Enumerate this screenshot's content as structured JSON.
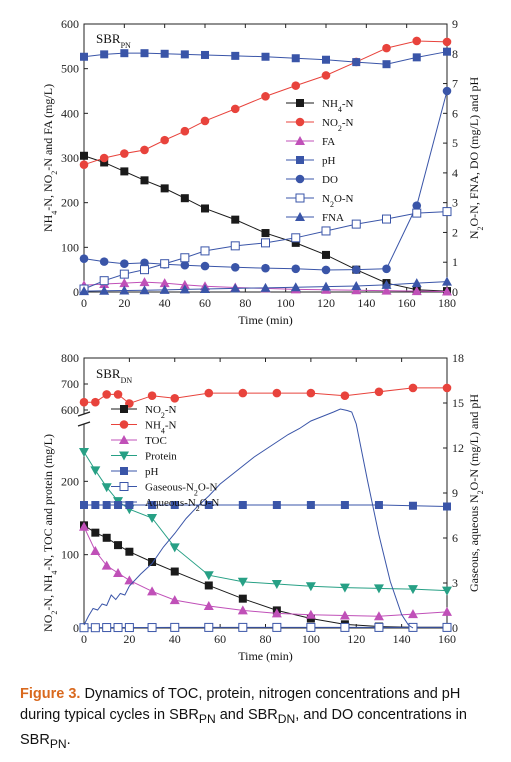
{
  "chart_data": [
    {
      "type": "line",
      "title": "SBR",
      "title_sub": "PN",
      "xlabel": "Time (min)",
      "ylabel": "NH4-N, NO2-N and FA (mg/L)",
      "ylabel_parts": [
        "NH",
        "4",
        "-N, NO",
        "2",
        "-N and FA (mg/L)"
      ],
      "ylabel_right": "N2O-N, FNA, DO (mg/L) and pH",
      "ylabel_right_parts": [
        "N",
        "2",
        "O-N, FNA, DO  (mg/L) and pH"
      ],
      "xlim": [
        0,
        180
      ],
      "ylim": [
        0,
        600
      ],
      "ylim_right": [
        0,
        9
      ],
      "xticks": [
        0,
        20,
        40,
        60,
        80,
        100,
        120,
        140,
        160,
        180
      ],
      "yticks": [
        0,
        100,
        200,
        300,
        400,
        500,
        600
      ],
      "yticks_right": [
        0,
        1,
        2,
        3,
        4,
        5,
        6,
        7,
        8,
        9
      ],
      "series": [
        {
          "name": "NH4-N",
          "label_main": "NH",
          "label_sub": "4",
          "label_tail": "-N",
          "marker": "square-filled",
          "color": "#1a1a1a",
          "axis": "left",
          "x": [
            0,
            10,
            20,
            30,
            40,
            50,
            60,
            75,
            90,
            105,
            120,
            135,
            150,
            165,
            180
          ],
          "y": [
            305,
            290,
            270,
            250,
            232,
            210,
            187,
            162,
            132,
            110,
            83,
            50,
            20,
            5,
            2
          ]
        },
        {
          "name": "NO2-N",
          "label_main": "NO",
          "label_sub": "2",
          "label_tail": "-N",
          "marker": "circle-filled",
          "color": "#e8433c",
          "axis": "left",
          "x": [
            0,
            10,
            20,
            30,
            40,
            50,
            60,
            75,
            90,
            105,
            120,
            135,
            150,
            165,
            180
          ],
          "y": [
            285,
            300,
            310,
            318,
            340,
            360,
            383,
            410,
            438,
            462,
            485,
            515,
            546,
            562,
            560
          ]
        },
        {
          "name": "FA",
          "label_main": "FA",
          "label_sub": "",
          "label_tail": "",
          "marker": "triangle-filled",
          "color": "#c050b8",
          "axis": "left",
          "x": [
            0,
            10,
            20,
            30,
            40,
            50,
            60,
            75,
            90,
            105,
            120,
            135,
            150,
            165,
            180
          ],
          "y": [
            15,
            18,
            20,
            22,
            20,
            16,
            13,
            10,
            8,
            6,
            5,
            4,
            3,
            2,
            1
          ]
        },
        {
          "name": "pH",
          "label_main": "pH",
          "label_sub": "",
          "label_tail": "",
          "marker": "square-filled",
          "color": "#3a55a8",
          "axis": "right",
          "x": [
            0,
            10,
            20,
            30,
            40,
            50,
            60,
            75,
            90,
            105,
            120,
            135,
            150,
            165,
            180
          ],
          "y": [
            7.9,
            7.98,
            8.02,
            8.02,
            8.0,
            7.98,
            7.96,
            7.93,
            7.9,
            7.85,
            7.8,
            7.72,
            7.65,
            7.88,
            8.07
          ]
        },
        {
          "name": "DO",
          "label_main": "DO",
          "label_sub": "",
          "label_tail": "",
          "marker": "circle-filled",
          "color": "#3a55a8",
          "axis": "right",
          "x": [
            0,
            10,
            20,
            30,
            40,
            50,
            60,
            75,
            90,
            105,
            120,
            135,
            150,
            165,
            180
          ],
          "y": [
            1.12,
            1.02,
            0.95,
            0.98,
            0.93,
            0.9,
            0.87,
            0.83,
            0.8,
            0.78,
            0.74,
            0.75,
            0.78,
            2.9,
            6.75
          ]
        },
        {
          "name": "N2O-N",
          "label_main": "N",
          "label_sub": "2",
          "label_tail": "O-N",
          "marker": "square-open",
          "color": "#3a55a8",
          "axis": "right",
          "x": [
            0,
            10,
            20,
            30,
            40,
            50,
            60,
            75,
            90,
            105,
            120,
            135,
            150,
            165,
            180
          ],
          "y": [
            0.1,
            0.38,
            0.6,
            0.75,
            0.95,
            1.15,
            1.38,
            1.55,
            1.65,
            1.82,
            2.05,
            2.28,
            2.45,
            2.65,
            2.7
          ]
        },
        {
          "name": "FNA",
          "label_main": "FNA",
          "label_sub": "",
          "label_tail": "",
          "marker": "triangle-filled",
          "color": "#3a55a8",
          "axis": "right",
          "x": [
            0,
            10,
            20,
            30,
            40,
            50,
            60,
            75,
            90,
            105,
            120,
            135,
            150,
            165,
            180
          ],
          "y": [
            0.03,
            0.04,
            0.05,
            0.06,
            0.07,
            0.09,
            0.1,
            0.12,
            0.14,
            0.16,
            0.18,
            0.2,
            0.24,
            0.3,
            0.35
          ]
        }
      ]
    },
    {
      "type": "line",
      "title": "SBR",
      "title_sub": "DN",
      "xlabel": "Time (min)",
      "ylabel": "NO2-N, NH4-N, TOC and protein (mg/L)",
      "ylabel_parts": [
        "NO",
        "2",
        "-N, NH",
        "4",
        "-N, TOC and protein (mg/L)"
      ],
      "ylabel_right": "Gaseous, aqueous N2O-N (mg/L) and pH",
      "ylabel_right_parts": [
        "Gaseous, aqueous N",
        "2",
        "O-N (mg/L) and pH"
      ],
      "xlim": [
        0,
        160
      ],
      "ylim": [
        0,
        270
      ],
      "ylim_upper": [
        600,
        800
      ],
      "ylim_right": [
        0,
        18
      ],
      "xticks": [
        0,
        20,
        40,
        60,
        80,
        100,
        120,
        140,
        160
      ],
      "yticks": [
        0,
        100,
        200
      ],
      "yticks_upper": [
        600,
        700,
        800
      ],
      "yticks_right": [
        0,
        3,
        6,
        9,
        12,
        15,
        18
      ],
      "series": [
        {
          "name": "NO2-N",
          "label_main": "NO",
          "label_sub": "2",
          "label_tail": "-N",
          "marker": "square-filled",
          "color": "#1a1a1a",
          "axis": "left",
          "x": [
            0,
            5,
            10,
            15,
            20,
            30,
            40,
            55,
            70,
            85,
            100,
            115,
            130,
            145,
            160
          ],
          "y": [
            140,
            130,
            123,
            113,
            104,
            90,
            77,
            58,
            40,
            24,
            13,
            5,
            2,
            1,
            1
          ]
        },
        {
          "name": "NH4-N",
          "label_main": "NH",
          "label_sub": "4",
          "label_tail": "-N",
          "marker": "circle-filled",
          "color": "#e8433c",
          "axis": "upper",
          "x": [
            0,
            5,
            10,
            15,
            20,
            30,
            40,
            55,
            70,
            85,
            100,
            115,
            130,
            145,
            160
          ],
          "y": [
            630,
            630,
            660,
            660,
            625,
            655,
            645,
            665,
            665,
            665,
            665,
            655,
            670,
            685,
            685
          ]
        },
        {
          "name": "TOC",
          "label_main": "TOC",
          "label_sub": "",
          "label_tail": "",
          "marker": "triangle-filled",
          "color": "#c050b8",
          "axis": "left",
          "x": [
            0,
            5,
            10,
            15,
            20,
            30,
            40,
            55,
            70,
            85,
            100,
            115,
            130,
            145,
            160
          ],
          "y": [
            138,
            105,
            85,
            75,
            65,
            50,
            38,
            30,
            24,
            20,
            18,
            17,
            16,
            19,
            22
          ]
        },
        {
          "name": "Protein",
          "label_main": "Protein",
          "label_sub": "",
          "label_tail": "",
          "marker": "triangle-down-filled",
          "color": "#27a085",
          "axis": "left",
          "x": [
            0,
            5,
            10,
            15,
            20,
            30,
            40,
            55,
            70,
            85,
            100,
            115,
            130,
            145,
            160
          ],
          "y": [
            240,
            215,
            192,
            173,
            162,
            150,
            110,
            72,
            63,
            60,
            57,
            55,
            54,
            53,
            51
          ]
        },
        {
          "name": "pH",
          "label_main": "pH",
          "label_sub": "",
          "label_tail": "",
          "marker": "square-filled",
          "color": "#3a55a8",
          "axis": "right",
          "x": [
            0,
            5,
            10,
            15,
            20,
            30,
            40,
            55,
            70,
            85,
            100,
            115,
            130,
            145,
            160
          ],
          "y": [
            8.2,
            8.2,
            8.2,
            8.2,
            8.2,
            8.2,
            8.2,
            8.2,
            8.2,
            8.2,
            8.2,
            8.2,
            8.2,
            8.15,
            8.1
          ]
        },
        {
          "name": "Gaseous-N2O-N",
          "label_main": "Gaseous-N",
          "label_sub": "2",
          "label_tail": "O-N",
          "marker": "square-open",
          "color": "#3a55a8",
          "axis": "right",
          "x": [
            0,
            5,
            10,
            15,
            20,
            30,
            40,
            55,
            70,
            85,
            100,
            115,
            130,
            145,
            160
          ],
          "y": [
            0.02,
            0.02,
            0.03,
            0.03,
            0.03,
            0.03,
            0.04,
            0.04,
            0.04,
            0.04,
            0.04,
            0.04,
            0.04,
            0.04,
            0.04
          ]
        },
        {
          "name": "Aqueous-N2O-N",
          "label_main": "Aqueous-N",
          "label_sub": "2",
          "label_tail": "O-N",
          "marker": "none",
          "color": "#3a55a8",
          "axis": "right",
          "x": [
            0,
            2,
            4,
            6,
            8,
            10,
            12,
            14,
            16,
            18,
            20,
            25,
            30,
            35,
            40,
            45,
            50,
            55,
            60,
            65,
            70,
            75,
            80,
            85,
            90,
            95,
            100,
            105,
            110,
            113,
            116,
            118,
            120,
            125,
            130,
            135,
            140,
            143,
            145
          ],
          "y": [
            0.2,
            0.8,
            1.3,
            1.2,
            1.6,
            1.5,
            2.2,
            1.9,
            2.3,
            2.2,
            2.8,
            3.6,
            4.3,
            5.4,
            6.3,
            7.3,
            8.1,
            8.8,
            9.6,
            10.2,
            10.8,
            11.4,
            11.9,
            12.4,
            12.9,
            13.3,
            13.8,
            14.1,
            14.4,
            14.6,
            14.5,
            14.4,
            13.6,
            9.8,
            6.2,
            3.1,
            0.9,
            0.2,
            0.0
          ]
        }
      ]
    }
  ],
  "caption": {
    "label": "Figure 3.",
    "text_1": " Dynamics of TOC, protein, nitrogen concentrations and pH during typical cycles in SBR",
    "sub_1": "PN",
    "text_2": " and SBR",
    "sub_2": "DN",
    "text_3": ", and DO concentrations in SBR",
    "sub_3": "PN",
    "text_4": "."
  }
}
